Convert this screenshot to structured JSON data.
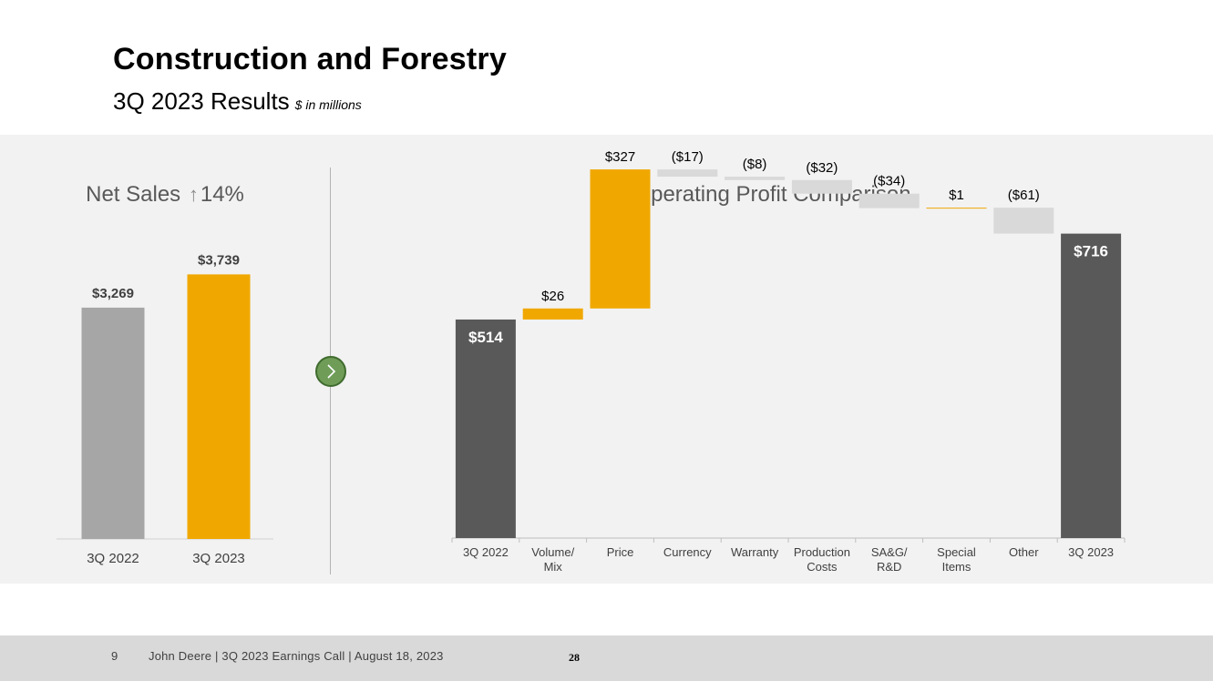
{
  "header": {
    "title": "Construction and Forestry",
    "subtitle": "3Q 2023 Results",
    "units": "$ in millions"
  },
  "colors": {
    "gray_bar": "#a6a6a6",
    "orange": "#f0a800",
    "dark": "#595959",
    "light_gray": "#d9d9d9"
  },
  "net_sales": {
    "title_prefix": "Net Sales",
    "arrow_icon": "↑",
    "title_suffix": "14%"
  },
  "operating_profit": {
    "title": "Operating Profit Comparison"
  },
  "chart_data": [
    {
      "type": "bar",
      "categories": [
        "3Q 2022",
        "3Q 2023"
      ],
      "values": [
        3269,
        3739
      ],
      "labels": [
        "$3,269",
        "$3,739"
      ],
      "colors": [
        "#a6a6a6",
        "#f0a800"
      ],
      "ylim": [
        0,
        4400
      ],
      "grid": false
    },
    {
      "type": "waterfall",
      "categories": [
        "3Q 2022",
        "Volume/\nMix",
        "Price",
        "Currency",
        "Warranty",
        "Production\nCosts",
        "SA&G/\nR&D",
        "Special\nItems",
        "Other",
        "3Q 2023"
      ],
      "values": [
        514,
        26,
        327,
        -17,
        -8,
        -32,
        -34,
        1,
        -61,
        716
      ],
      "labels": [
        "$514",
        "$26",
        "$327",
        "($17)",
        "($8)",
        "($32)",
        "($34)",
        "$1",
        "($61)",
        "$716"
      ],
      "kinds": [
        "total",
        "delta",
        "delta",
        "delta",
        "delta",
        "delta",
        "delta",
        "delta",
        "delta",
        "total"
      ],
      "ylim": [
        0,
        940
      ],
      "grid": false
    }
  ],
  "footer": {
    "page_number": "9",
    "text": "John Deere | 3Q 2023 Earnings Call | August 18, 2023",
    "slide_number": "28"
  }
}
